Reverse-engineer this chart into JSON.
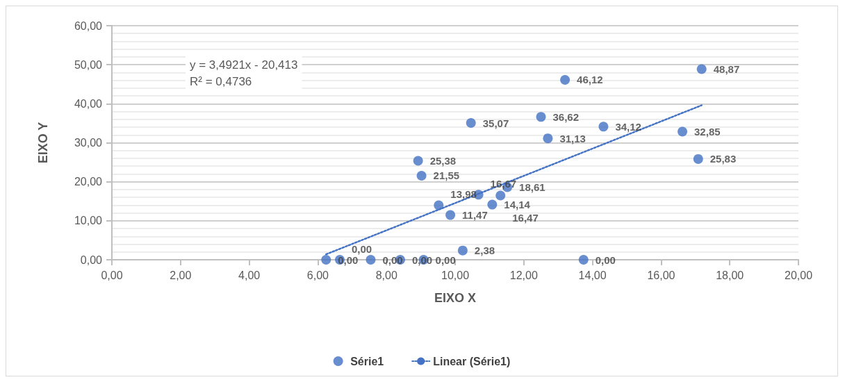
{
  "chart_data": {
    "type": "scatter",
    "xlabel": "EIXO X",
    "ylabel": "EIXO Y",
    "annotations": [
      "y = 3,4921x - 20,413",
      "R² = 0,4736"
    ],
    "xlim": [
      0,
      20
    ],
    "xticks": [
      {
        "value": 0,
        "label": "0,00"
      },
      {
        "value": 2,
        "label": "2,00"
      },
      {
        "value": 4,
        "label": "4,00"
      },
      {
        "value": 6,
        "label": "6,00"
      },
      {
        "value": 8,
        "label": "8,00"
      },
      {
        "value": 10,
        "label": "10,00"
      },
      {
        "value": 12,
        "label": "12,00"
      },
      {
        "value": 14,
        "label": "14,00"
      },
      {
        "value": 16,
        "label": "16,00"
      },
      {
        "value": 18,
        "label": "18,00"
      },
      {
        "value": 20,
        "label": "20,00"
      }
    ],
    "ylim": [
      0,
      60
    ],
    "yticks": [
      {
        "value": 0,
        "label": "0,00"
      },
      {
        "value": 10,
        "label": "10,00"
      },
      {
        "value": 20,
        "label": "20,00"
      },
      {
        "value": 30,
        "label": "30,00"
      },
      {
        "value": 40,
        "label": "40,00"
      },
      {
        "value": 50,
        "label": "50,00"
      },
      {
        "value": 60,
        "label": "60,00"
      }
    ],
    "grid": "y",
    "legend": "bottom",
    "marker": "circle",
    "series": [
      {
        "name": "Série1",
        "color": "#4472c4",
        "value_labels": [
          "0,00",
          "0,00",
          "0,00",
          "0,00",
          "0,00",
          "0,00",
          "2,38",
          "11,47",
          "13,98",
          "14,14",
          "16,67",
          "16,47",
          "18,61",
          "21,55",
          "25,38",
          "35,07",
          "36,62",
          "31,13",
          "46,12",
          "34,12",
          "32,85",
          "25,83",
          "48,87"
        ],
        "x": [
          6.24,
          6.64,
          7.54,
          8.4,
          9.08,
          13.74,
          10.22,
          9.86,
          9.52,
          11.08,
          10.68,
          11.32,
          11.52,
          9.02,
          8.92,
          10.46,
          12.5,
          12.7,
          13.2,
          14.32,
          16.62,
          17.08,
          17.18
        ],
        "values": [
          0,
          0,
          0,
          0,
          0,
          0,
          2.38,
          11.47,
          13.98,
          14.14,
          16.67,
          16.47,
          18.61,
          21.55,
          25.38,
          35.07,
          36.62,
          31.13,
          46.12,
          34.12,
          32.85,
          25.83,
          48.87
        ]
      },
      {
        "name": "Linear (Série1)",
        "type": "line",
        "color": "#4472c4",
        "line_style": "dotted",
        "marker": "none",
        "x": [
          6.24,
          17.18
        ],
        "values": [
          1.4,
          39.6
        ]
      }
    ]
  }
}
